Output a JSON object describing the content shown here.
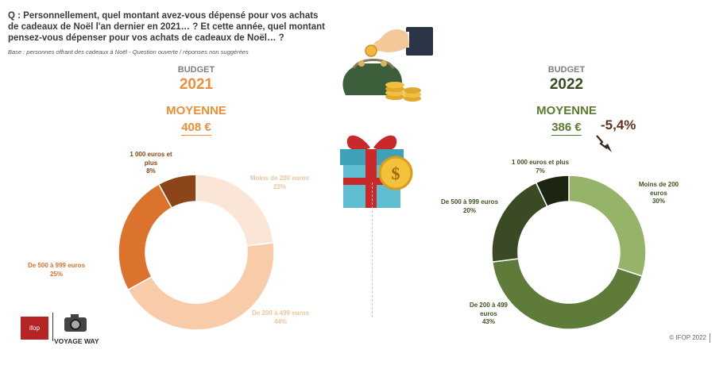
{
  "question": "Q : Personnellement, quel montant avez-vous dépensé pour vos achats de cadeaux de Noël l'an dernier en 2021… ? Et cette année, quel montant pensez-vous dépenser pour vos achats de cadeaux de Noël… ?",
  "base": "Base : personnes offrant des cadeaux à Noël - Question ouverte / réponses non suggérées",
  "budget_2021": {
    "label": "BUDGET",
    "year": "2021",
    "moyenne_label": "MOYENNE",
    "average": "408 €"
  },
  "budget_2022": {
    "label": "BUDGET",
    "year": "2022",
    "moyenne_label": "MOYENNE",
    "average": "386 €",
    "change": "-5,4%"
  },
  "footer": {
    "copyright": "© IFOP 2022",
    "ifop_logo": "ifop",
    "voyage_way_logo": "VOYAGE WAY"
  },
  "chart_data": [
    {
      "type": "pie",
      "year": "2021",
      "categories": [
        "Moins de 200 euros",
        "De 200 à 499 euros",
        "De 500 à 999 euros",
        "1 000 euros et plus"
      ],
      "values": [
        23,
        44,
        25,
        8
      ],
      "labels": [
        "Moins de 200 euros\n23%",
        "De 200 à 499 euros\n44%",
        "De 500 à 999 euros\n25%",
        "1 000 euros et\nplus\n8%"
      ],
      "colors": [
        "#fbe5d6",
        "#f8cba9",
        "#dc732c",
        "#8c4518"
      ],
      "label_colors": [
        "#f3c49d",
        "#f3c49d",
        "#dc732c",
        "#8c4518"
      ]
    },
    {
      "type": "pie",
      "year": "2022",
      "categories": [
        "Moins de 200 euros",
        "De 200 à 499 euros",
        "De 500 à 999 euros",
        "1 000 euros et plus"
      ],
      "values": [
        30,
        43,
        20,
        7
      ],
      "labels": [
        "Moins de 200\neuros\n30%",
        "De 200 à 499\neuros\n43%",
        "De 500 à 999 euros\n20%",
        "1 000 euros et plus\n7%"
      ],
      "colors": [
        "#95b46a",
        "#5e7b3a",
        "#394a24",
        "#1c2511"
      ],
      "label_colors": [
        "#3e5520",
        "#3e5520",
        "#3e5520",
        "#3e5520"
      ]
    }
  ]
}
